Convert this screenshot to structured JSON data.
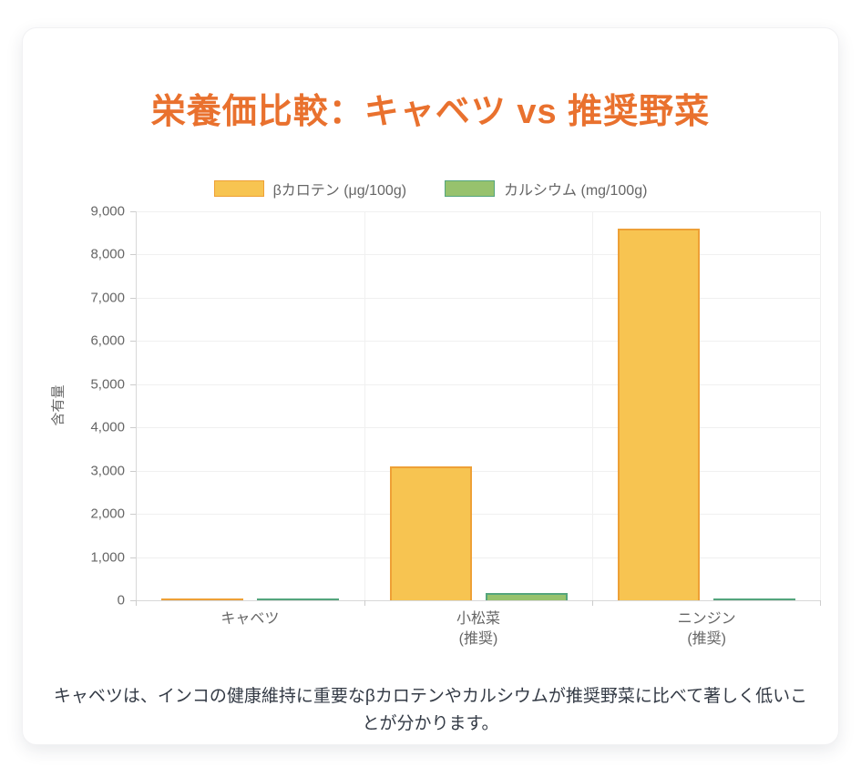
{
  "page": {
    "title": "栄養価比較：キャベツ vs 推奨野菜",
    "caption": "キャベツは、インコの健康維持に重要なβカロテンやカルシウムが推奨野菜に比べて著しく低いことが分かります。"
  },
  "colors": {
    "title_text": "#E9712E",
    "caption_text": "#333A45",
    "axis_text": "#666666",
    "grid_line": "#F0F0F0",
    "axis_line": "#D8D8D8",
    "tick_line": "#CCCCCC",
    "card_background": "#FFFFFF",
    "beta_carotene_fill": "#F7C451",
    "beta_carotene_border": "#EEA036",
    "calcium_fill": "#97C26D",
    "calcium_border": "#54A57D"
  },
  "chart_data": {
    "type": "bar",
    "title": "栄養価比較：キャベツ vs 推奨野菜",
    "categories": [
      "キャベツ",
      "小松菜\n(推奨)",
      "ニンジン\n(推奨)"
    ],
    "series": [
      {
        "name": "βカロテン (μg/100g)",
        "values": [
          49,
          3100,
          8600
        ],
        "fill": "#F7C451",
        "border": "#EEA036"
      },
      {
        "name": "カルシウム (mg/100g)",
        "values": [
          43,
          170,
          28
        ],
        "fill": "#97C26D",
        "border": "#54A57D"
      }
    ],
    "xlabel": "",
    "ylabel": "含有量",
    "ylim": [
      0,
      9000
    ],
    "ytick_step": 1000,
    "grid": true,
    "legend_position": "top"
  }
}
